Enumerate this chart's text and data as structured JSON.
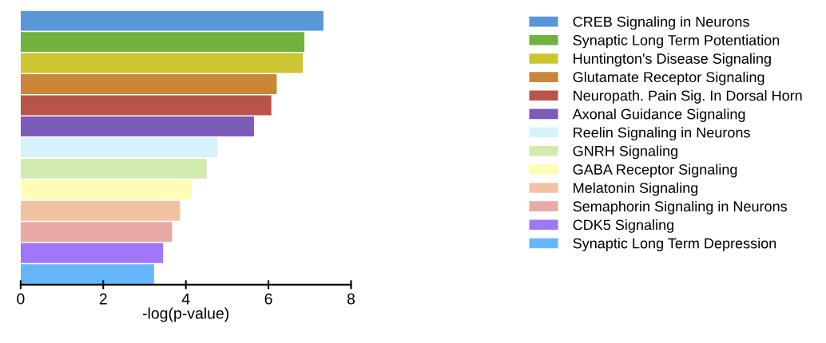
{
  "chart_data": {
    "type": "bar",
    "orientation": "horizontal",
    "stacked": true,
    "xlabel": "-log(p-value)",
    "categories": [
      null,
      null,
      null,
      null,
      null,
      null,
      null,
      null,
      null,
      null,
      null,
      null,
      null
    ],
    "series": [
      {
        "name": "CREB Signaling in Neurons",
        "color": "#5a97d8",
        "values": [
          7.33,
          null,
          null,
          null,
          null,
          null,
          null,
          null,
          null,
          null,
          null,
          null,
          null
        ]
      },
      {
        "name": "Synaptic Long Term Potentiation",
        "color": "#6fb23e",
        "values": [
          null,
          6.87,
          null,
          null,
          null,
          null,
          null,
          null,
          null,
          null,
          null,
          null,
          null
        ]
      },
      {
        "name": "Huntington's Disease Signaling",
        "color": "#cdc530",
        "values": [
          null,
          null,
          6.83,
          null,
          null,
          null,
          null,
          null,
          null,
          null,
          null,
          null,
          null
        ]
      },
      {
        "name": "Glutamate Receptor Signaling",
        "color": "#c98637",
        "values": [
          null,
          null,
          null,
          6.2,
          null,
          null,
          null,
          null,
          null,
          null,
          null,
          null,
          null
        ]
      },
      {
        "name": "Neuropath. Pain Sig. In Dorsal Horn",
        "color": "#b85549",
        "values": [
          null,
          null,
          null,
          null,
          6.07,
          null,
          null,
          null,
          null,
          null,
          null,
          null,
          null
        ]
      },
      {
        "name": "Axonal Guidance Signaling",
        "color": "#7d5bb8",
        "values": [
          null,
          null,
          null,
          null,
          null,
          5.65,
          null,
          null,
          null,
          null,
          null,
          null,
          null
        ]
      },
      {
        "name": "Reelin Signaling in Neurons",
        "color": "#d6f2fb",
        "values": [
          null,
          null,
          null,
          null,
          null,
          null,
          4.77,
          null,
          null,
          null,
          null,
          null,
          null
        ]
      },
      {
        "name": "GNRH Signaling",
        "color": "#d2ebae",
        "values": [
          null,
          null,
          null,
          null,
          null,
          null,
          null,
          4.5,
          null,
          null,
          null,
          null,
          null
        ]
      },
      {
        "name": "GABA Receptor Signaling",
        "color": "#fffcb6",
        "values": [
          null,
          null,
          null,
          null,
          null,
          null,
          null,
          null,
          4.14,
          null,
          null,
          null,
          null
        ]
      },
      {
        "name": "Melatonin Signaling",
        "color": "#f2c3a3",
        "values": [
          null,
          null,
          null,
          null,
          null,
          null,
          null,
          null,
          null,
          3.86,
          null,
          null,
          null
        ]
      },
      {
        "name": "Semaphorin Signaling in Neurons",
        "color": "#eba9a5",
        "values": [
          null,
          null,
          null,
          null,
          null,
          null,
          null,
          null,
          null,
          null,
          3.67,
          null,
          null
        ]
      },
      {
        "name": "CDK5 Signaling",
        "color": "#a077f7",
        "values": [
          null,
          null,
          null,
          null,
          null,
          null,
          null,
          null,
          null,
          null,
          null,
          3.45,
          null
        ]
      },
      {
        "name": "Synaptic Long Term Depression",
        "color": "#66b7fa",
        "values": [
          null,
          null,
          null,
          null,
          null,
          null,
          null,
          null,
          null,
          null,
          null,
          null,
          3.23
        ]
      }
    ],
    "xlim": [
      0,
      8
    ],
    "xticks": [
      0,
      2,
      4,
      6,
      8
    ],
    "tick_labels": "x",
    "legend": "right"
  }
}
